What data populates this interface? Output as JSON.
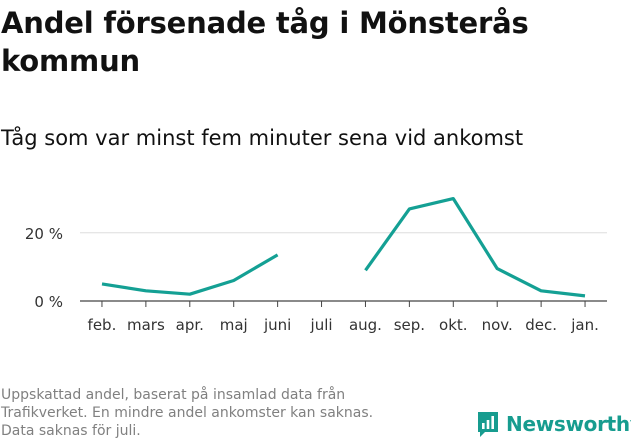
{
  "title": "Andel försenade tåg i Mönsterås kommun",
  "subtitle": "Tåg som var minst fem minuter sena vid ankomst",
  "footnote": [
    "Uppskattad andel, baserat på insamlad data från",
    "Trafikverket. En mindre andel ankomster kan saknas.",
    "Data saknas för juli."
  ],
  "brand": {
    "name": "Newsworthy",
    "color": "#179c8f",
    "icon": "newsworthy-logo-icon"
  },
  "chart_data": {
    "type": "line",
    "categories": [
      "feb.",
      "mars",
      "apr.",
      "maj",
      "juni",
      "juli",
      "aug.",
      "sep.",
      "okt.",
      "nov.",
      "dec.",
      "jan."
    ],
    "series": [
      {
        "values": [
          5,
          3,
          2,
          6,
          13.5,
          null,
          9,
          27,
          30,
          9.5,
          3,
          1.5
        ],
        "color": "#14a094"
      }
    ],
    "y_ticks": [
      0,
      20
    ],
    "y_tick_labels": [
      "0 %",
      "20 %"
    ],
    "ylim": [
      0,
      34
    ],
    "grid": true,
    "legend": "none"
  }
}
